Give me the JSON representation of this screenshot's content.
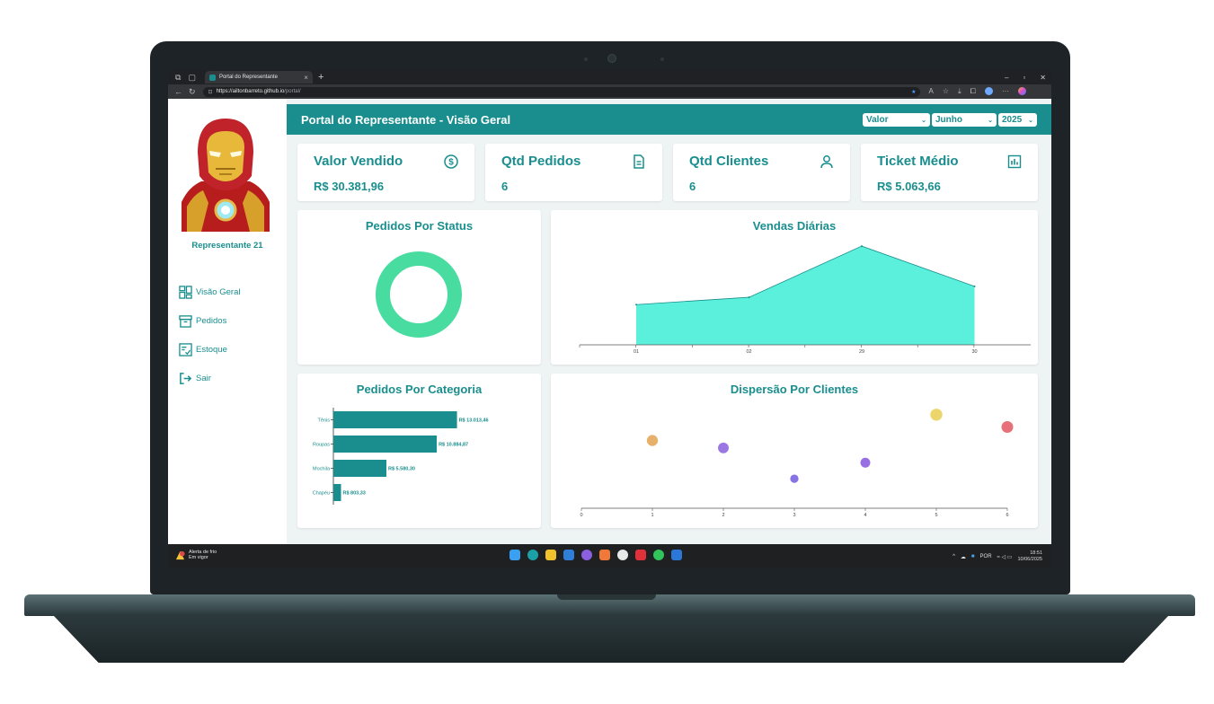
{
  "browser": {
    "tab_title": "Portal do Representante",
    "url_host": "https://ailtonbarreto.github.io",
    "url_path": "/portal/"
  },
  "sidebar": {
    "rep_name": "Representante 21",
    "items": [
      {
        "label": "Visão Geral",
        "icon": "grid-icon"
      },
      {
        "label": "Pedidos",
        "icon": "archive-box-icon"
      },
      {
        "label": "Estoque",
        "icon": "checklist-icon"
      },
      {
        "label": "Sair",
        "icon": "logout-icon"
      }
    ]
  },
  "header": {
    "title": "Portal do Representante - Visão Geral",
    "filters": {
      "metric": "Valor",
      "month": "Junho",
      "year": "2025"
    }
  },
  "kpis": [
    {
      "title": "Valor Vendido",
      "value": "R$ 30.381,96",
      "icon": "dollar-circle-icon"
    },
    {
      "title": "Qtd Pedidos",
      "value": "6",
      "icon": "document-icon"
    },
    {
      "title": "Qtd Clientes",
      "value": "6",
      "icon": "user-icon"
    },
    {
      "title": "Ticket Médio",
      "value": "R$ 5.063,66",
      "icon": "bar-chart-icon"
    }
  ],
  "colors": {
    "primary": "#1a8e8e",
    "donut": "#48dca0",
    "area": "#5af0dc"
  },
  "chart_data": [
    {
      "type": "pie",
      "title": "Pedidos Por Status",
      "slices": [
        {
          "value": 1
        }
      ],
      "donut": true
    },
    {
      "type": "area",
      "title": "Vendas Diárias",
      "categories": [
        "01",
        "02",
        "29",
        "30"
      ],
      "values": [
        5500,
        6500,
        13500,
        8000
      ],
      "ylim": [
        0,
        14000
      ]
    },
    {
      "type": "bar",
      "orientation": "horizontal",
      "title": "Pedidos Por Categoria",
      "categories": [
        "Tênis",
        "Roupas",
        "Mochila",
        "Chapéu"
      ],
      "values": [
        13013.46,
        10884.87,
        5580.3,
        803.33
      ],
      "labels": [
        "R$ 13.013,46",
        "R$ 10.884,87",
        "R$ 5.580,30",
        "R$ 803,33"
      ],
      "xlim": [
        0,
        14000
      ]
    },
    {
      "type": "scatter",
      "title": "Dispersão Por Clientes",
      "x_ticks": [
        "0",
        "1",
        "2",
        "3",
        "4",
        "5",
        "6"
      ],
      "xlim": [
        0,
        6
      ],
      "ylim": [
        0,
        14000
      ],
      "points": [
        {
          "x": 1,
          "y": 5500,
          "size": 5500,
          "color": "#e3a95a"
        },
        {
          "x": 2,
          "y": 4900,
          "size": 4800,
          "color": "#8f68e0"
        },
        {
          "x": 3,
          "y": 2400,
          "size": 1000,
          "color": "#7a64e0"
        },
        {
          "x": 4,
          "y": 3700,
          "size": 3000,
          "color": "#8c5fe0"
        },
        {
          "x": 5,
          "y": 7600,
          "size": 8000,
          "color": "#ead05a"
        },
        {
          "x": 6,
          "y": 6600,
          "size": 7000,
          "color": "#e4606a"
        }
      ]
    }
  ],
  "taskbar": {
    "alert_title": "Alerta de frio",
    "alert_sub": "Em vigor",
    "lang": "POR",
    "time": "18:51",
    "date": "10/06/2025"
  }
}
